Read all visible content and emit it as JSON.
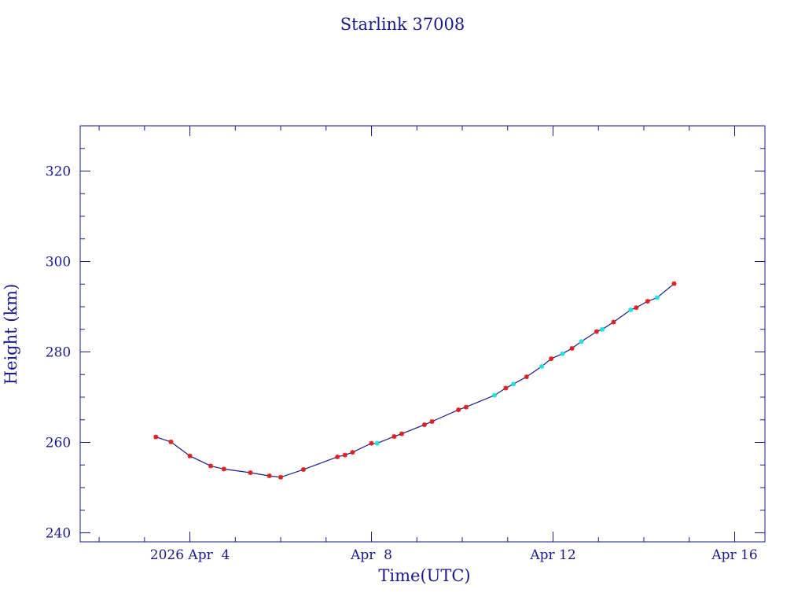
{
  "chart_data": {
    "type": "scatter",
    "title": "Starlink 37008",
    "xlabel": "Time(UTC)",
    "ylabel": "Height (km)",
    "x_ticks": [
      "2026 Apr  4",
      "Apr  8",
      "Apr 12",
      "Apr 16"
    ],
    "y_ticks": [
      "240",
      "260",
      "280",
      "300",
      "320"
    ],
    "xlim": [
      "2026-04-01T14:00",
      "2026-04-16T16:00"
    ],
    "ylim": [
      238,
      330
    ],
    "grid": false,
    "legend": "none",
    "colors": {
      "axes": "#1a1a8c",
      "line": "#1a1a8c",
      "marker_primary": "#e02020",
      "marker_secondary": "#20e0e0"
    },
    "series": [
      {
        "marker": "primary",
        "points": [
          {
            "x": "2026-04-03T06:00",
            "y": 261.2
          },
          {
            "x": "2026-04-03T14:00",
            "y": 260.1
          },
          {
            "x": "2026-04-04T00:00",
            "y": 257.0
          },
          {
            "x": "2026-04-04T11:00",
            "y": 254.8
          },
          {
            "x": "2026-04-04T18:00",
            "y": 254.1
          },
          {
            "x": "2026-04-05T08:00",
            "y": 253.3
          },
          {
            "x": "2026-04-05T18:00",
            "y": 252.6
          },
          {
            "x": "2026-04-06T00:00",
            "y": 252.3
          },
          {
            "x": "2026-04-06T12:00",
            "y": 254.0
          },
          {
            "x": "2026-04-07T06:00",
            "y": 256.8
          },
          {
            "x": "2026-04-07T10:00",
            "y": 257.2
          },
          {
            "x": "2026-04-07T14:00",
            "y": 257.8
          },
          {
            "x": "2026-04-08T00:00",
            "y": 259.8
          },
          {
            "x": "2026-04-08T12:00",
            "y": 261.3
          },
          {
            "x": "2026-04-08T16:00",
            "y": 261.9
          },
          {
            "x": "2026-04-09T04:00",
            "y": 263.9
          },
          {
            "x": "2026-04-09T08:00",
            "y": 264.6
          },
          {
            "x": "2026-04-09T22:00",
            "y": 267.2
          },
          {
            "x": "2026-04-10T02:00",
            "y": 267.8
          },
          {
            "x": "2026-04-10T23:00",
            "y": 272.0
          },
          {
            "x": "2026-04-11T10:00",
            "y": 274.5
          },
          {
            "x": "2026-04-11T23:00",
            "y": 278.5
          },
          {
            "x": "2026-04-12T10:00",
            "y": 280.8
          },
          {
            "x": "2026-04-12T23:00",
            "y": 284.5
          },
          {
            "x": "2026-04-13T08:00",
            "y": 286.6
          },
          {
            "x": "2026-04-13T20:00",
            "y": 289.8
          },
          {
            "x": "2026-04-14T02:00",
            "y": 291.2
          },
          {
            "x": "2026-04-14T16:00",
            "y": 295.1
          }
        ]
      },
      {
        "marker": "secondary",
        "points": [
          {
            "x": "2026-04-08T03:00",
            "y": 259.8
          },
          {
            "x": "2026-04-10T17:00",
            "y": 270.4
          },
          {
            "x": "2026-04-11T03:00",
            "y": 272.9
          },
          {
            "x": "2026-04-11T18:00",
            "y": 276.8
          },
          {
            "x": "2026-04-12T05:00",
            "y": 279.6
          },
          {
            "x": "2026-04-12T15:00",
            "y": 282.3
          },
          {
            "x": "2026-04-13T02:00",
            "y": 285.0
          },
          {
            "x": "2026-04-13T17:00",
            "y": 289.3
          },
          {
            "x": "2026-04-14T07:00",
            "y": 292.0
          }
        ]
      }
    ]
  }
}
